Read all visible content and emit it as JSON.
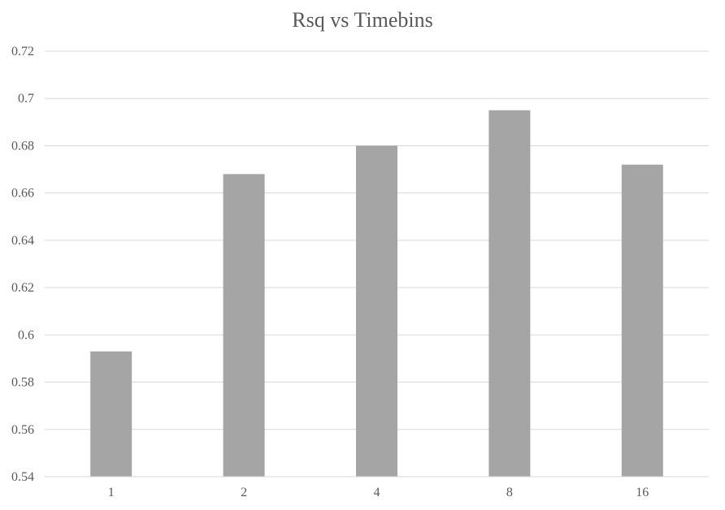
{
  "chart_data": {
    "type": "bar",
    "title": "Rsq vs Timebins",
    "xlabel": "",
    "ylabel": "",
    "categories": [
      "1",
      "2",
      "4",
      "8",
      "16"
    ],
    "values": [
      0.593,
      0.668,
      0.68,
      0.695,
      0.672
    ],
    "ylim": [
      0.54,
      0.72
    ],
    "y_ticks": [
      "0.54",
      "0.56",
      "0.58",
      "0.6",
      "0.62",
      "0.64",
      "0.66",
      "0.68",
      "0.7",
      "0.72"
    ],
    "grid": true,
    "legend": "none",
    "bar_color": "#a5a5a5"
  }
}
